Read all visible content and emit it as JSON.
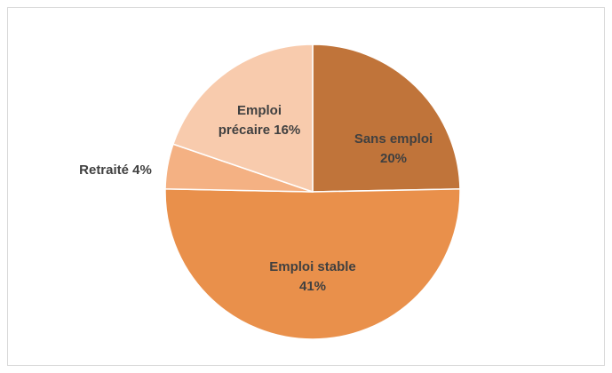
{
  "chart_data": {
    "type": "pie",
    "categories": [
      "Sans emploi",
      "Emploi stable",
      "Retraité",
      "Emploi précaire"
    ],
    "values": [
      20,
      41,
      4,
      16
    ],
    "value_labels": [
      "20%",
      "41%",
      "4%",
      "16%"
    ],
    "colors": [
      "#c0743a",
      "#e9904b",
      "#f4b183",
      "#f8cbad"
    ]
  }
}
